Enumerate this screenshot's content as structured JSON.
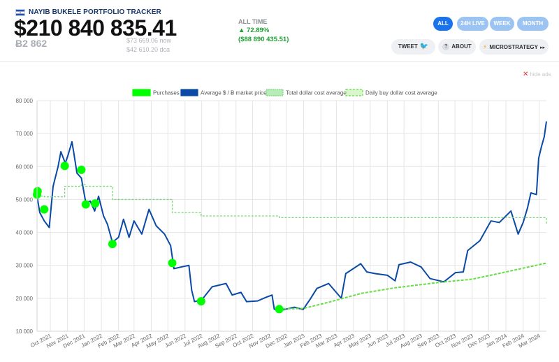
{
  "header": {
    "brand": "NAYIB BUKELE PORTFOLIO TRACKER",
    "usd_value": "$210 840 835.41",
    "btc_amount": "Ƀ2 862",
    "now_price": "$73 669.06 now",
    "dca_price": "$42 610.20 dca",
    "alltime_label": "ALL TIME",
    "alltime_pct": "▲ 72.89%",
    "alltime_abs": "($88 890 435.51)",
    "brand_colors": {
      "accent": "#1a73e8",
      "light": "#9cc4f3",
      "gain": "#1fa233"
    }
  },
  "timeframes": [
    {
      "label": "ALL",
      "active": true
    },
    {
      "label": "24H LIVE",
      "active": false
    },
    {
      "label": "WEEK",
      "active": false
    },
    {
      "label": "MONTH",
      "active": false
    }
  ],
  "actions": {
    "tweet": "TWEET",
    "about": "ABOUT",
    "microstrategy": "MICROSTRATEGY",
    "icons": [
      "twitter-icon",
      "question-icon",
      "bolt-icon",
      "play-icon"
    ]
  },
  "ads": {
    "hide_label": "hide ads"
  },
  "chart_data": {
    "type": "line",
    "title": "",
    "ylim": [
      10000,
      80000
    ],
    "yticks": [
      10000,
      20000,
      30000,
      40000,
      50000,
      60000,
      70000,
      80000
    ],
    "ytick_labels": [
      "10 000",
      "20 000",
      "30 000",
      "40 000",
      "50 000",
      "60 000",
      "70 000",
      "80 000"
    ],
    "xlim": [
      "2021-09-07",
      "2024-03-14"
    ],
    "x_tick_labels": [
      "Oct 2021",
      "Nov 2021",
      "Dec 2021",
      "Jan 2022",
      "Feb 2022",
      "Mar 2022",
      "Apr 2022",
      "May 2022",
      "Jun 2022",
      "Jul 2022",
      "Aug 2022",
      "Sep 2022",
      "Oct 2022",
      "Nov 2022",
      "Dec 2022",
      "Jan 2023",
      "Feb 2023",
      "Mar 2023",
      "Apr 2023",
      "May 2023",
      "Jun 2023",
      "Jul 2023",
      "Aug 2023",
      "Sep 2023",
      "Oct 2023",
      "Nov 2023",
      "Dec 2023",
      "Jan 2024",
      "Feb 2024",
      "Mar 2024"
    ],
    "x_ticks": [
      "2021-10-01",
      "2021-11-01",
      "2021-12-01",
      "2022-01-01",
      "2022-02-01",
      "2022-03-01",
      "2022-04-01",
      "2022-05-01",
      "2022-06-01",
      "2022-07-01",
      "2022-08-01",
      "2022-09-01",
      "2022-10-01",
      "2022-11-01",
      "2022-12-01",
      "2023-01-01",
      "2023-02-01",
      "2023-03-01",
      "2023-04-01",
      "2023-05-01",
      "2023-06-01",
      "2023-07-01",
      "2023-08-01",
      "2023-09-01",
      "2023-10-01",
      "2023-11-01",
      "2023-12-01",
      "2024-01-01",
      "2024-02-01",
      "2024-03-01"
    ],
    "legend_position": "top-center",
    "grid": true,
    "series": [
      {
        "name": "Purchases",
        "kind": "points",
        "color": "#00ff00",
        "points": [
          [
            "2021-09-07",
            51500
          ],
          [
            "2021-09-08",
            52500
          ],
          [
            "2021-09-20",
            47000
          ],
          [
            "2021-10-27",
            60200
          ],
          [
            "2021-11-26",
            59000
          ],
          [
            "2021-12-04",
            48500
          ],
          [
            "2021-12-21",
            48800
          ],
          [
            "2022-01-21",
            36500
          ],
          [
            "2022-05-09",
            30700
          ],
          [
            "2022-06-30",
            19100
          ],
          [
            "2022-11-18",
            16700
          ]
        ]
      },
      {
        "name": "Average $ / Ƀ market price",
        "kind": "line",
        "color": "#0a4aa6",
        "points": [
          [
            "2021-09-07",
            51000
          ],
          [
            "2021-09-12",
            46000
          ],
          [
            "2021-09-20",
            43500
          ],
          [
            "2021-09-29",
            41500
          ],
          [
            "2021-10-06",
            54000
          ],
          [
            "2021-10-15",
            60000
          ],
          [
            "2021-10-20",
            64500
          ],
          [
            "2021-10-28",
            61000
          ],
          [
            "2021-11-02",
            63500
          ],
          [
            "2021-11-09",
            67500
          ],
          [
            "2021-11-12",
            64500
          ],
          [
            "2021-11-18",
            58000
          ],
          [
            "2021-11-26",
            56500
          ],
          [
            "2021-12-04",
            49000
          ],
          [
            "2021-12-12",
            49500
          ],
          [
            "2021-12-20",
            46500
          ],
          [
            "2021-12-27",
            51000
          ],
          [
            "2022-01-05",
            45000
          ],
          [
            "2022-01-12",
            42500
          ],
          [
            "2022-01-21",
            37000
          ],
          [
            "2022-02-01",
            38500
          ],
          [
            "2022-02-10",
            44000
          ],
          [
            "2022-02-20",
            38500
          ],
          [
            "2022-03-01",
            43500
          ],
          [
            "2022-03-15",
            39500
          ],
          [
            "2022-03-28",
            47000
          ],
          [
            "2022-04-10",
            42000
          ],
          [
            "2022-04-25",
            39500
          ],
          [
            "2022-05-06",
            36000
          ],
          [
            "2022-05-12",
            29000
          ],
          [
            "2022-05-25",
            29500
          ],
          [
            "2022-06-08",
            30000
          ],
          [
            "2022-06-13",
            22500
          ],
          [
            "2022-06-18",
            19000
          ],
          [
            "2022-07-01",
            19500
          ],
          [
            "2022-07-20",
            23500
          ],
          [
            "2022-08-14",
            24500
          ],
          [
            "2022-08-25",
            21000
          ],
          [
            "2022-09-10",
            21800
          ],
          [
            "2022-09-20",
            19000
          ],
          [
            "2022-10-10",
            19200
          ],
          [
            "2022-10-25",
            20300
          ],
          [
            "2022-11-05",
            21000
          ],
          [
            "2022-11-09",
            16700
          ],
          [
            "2022-11-20",
            16300
          ],
          [
            "2022-12-15",
            17300
          ],
          [
            "2022-12-31",
            16600
          ],
          [
            "2023-01-13",
            19800
          ],
          [
            "2023-01-25",
            23000
          ],
          [
            "2023-02-15",
            24500
          ],
          [
            "2023-03-10",
            20000
          ],
          [
            "2023-03-18",
            27500
          ],
          [
            "2023-04-14",
            30500
          ],
          [
            "2023-04-25",
            28000
          ],
          [
            "2023-05-10",
            27500
          ],
          [
            "2023-06-01",
            27000
          ],
          [
            "2023-06-15",
            25300
          ],
          [
            "2023-06-22",
            30200
          ],
          [
            "2023-07-13",
            31000
          ],
          [
            "2023-08-01",
            29500
          ],
          [
            "2023-08-17",
            26000
          ],
          [
            "2023-09-11",
            25000
          ],
          [
            "2023-10-02",
            27800
          ],
          [
            "2023-10-16",
            28000
          ],
          [
            "2023-10-24",
            34500
          ],
          [
            "2023-11-15",
            37500
          ],
          [
            "2023-12-05",
            43500
          ],
          [
            "2023-12-20",
            43000
          ],
          [
            "2024-01-10",
            46500
          ],
          [
            "2024-01-23",
            39500
          ],
          [
            "2024-02-01",
            43000
          ],
          [
            "2024-02-09",
            47500
          ],
          [
            "2024-02-15",
            52000
          ],
          [
            "2024-02-25",
            51500
          ],
          [
            "2024-02-29",
            62500
          ],
          [
            "2024-03-05",
            66000
          ],
          [
            "2024-03-10",
            69000
          ],
          [
            "2024-03-14",
            73700
          ]
        ]
      },
      {
        "name": "Total dollar cost average",
        "kind": "step",
        "color": "#7ed67e",
        "points": [
          [
            "2021-09-07",
            51000
          ],
          [
            "2021-09-20",
            50800
          ],
          [
            "2021-10-27",
            54000
          ],
          [
            "2021-11-26",
            54500
          ],
          [
            "2021-12-04",
            54000
          ],
          [
            "2022-01-21",
            50000
          ],
          [
            "2022-05-09",
            46000
          ],
          [
            "2022-06-30",
            45000
          ],
          [
            "2022-11-18",
            44500
          ],
          [
            "2024-03-14",
            42600
          ]
        ]
      },
      {
        "name": "Daily buy dollar cost average",
        "kind": "line",
        "color": "#66dd44",
        "points": [
          [
            "2022-11-18",
            16800
          ],
          [
            "2022-12-31",
            16900
          ],
          [
            "2023-02-15",
            18800
          ],
          [
            "2023-04-15",
            21500
          ],
          [
            "2023-06-15",
            23200
          ],
          [
            "2023-09-01",
            24800
          ],
          [
            "2023-11-01",
            25800
          ],
          [
            "2024-01-01",
            28000
          ],
          [
            "2024-03-14",
            30700
          ]
        ]
      }
    ]
  }
}
